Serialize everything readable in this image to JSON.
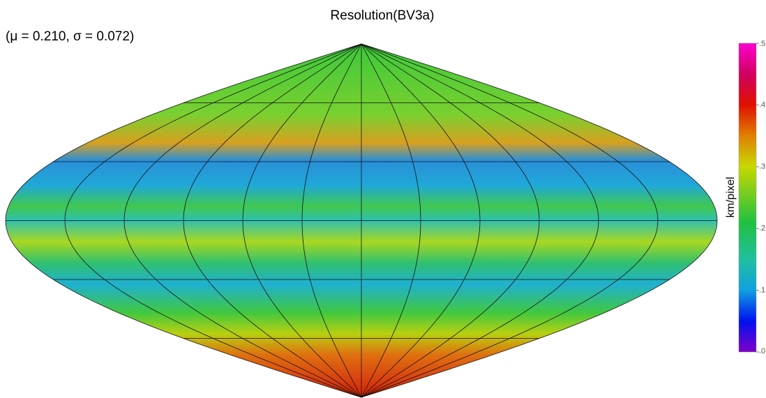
{
  "title": "Resolution(BV3a)",
  "stats": "(μ = 0.210, σ = 0.072)",
  "colorbar": {
    "label": "km/pixel",
    "lim": [
      0,
      0.5
    ],
    "ticks": [
      {
        "value": 0,
        "label": ".0"
      },
      {
        "value": 0.1,
        "label": ".1"
      },
      {
        "value": 0.2,
        "label": ".2"
      },
      {
        "value": 0.3,
        "label": ".3"
      },
      {
        "value": 0.4,
        "label": ".4"
      },
      {
        "value": 0.5,
        "label": ".5"
      }
    ]
  }
}
